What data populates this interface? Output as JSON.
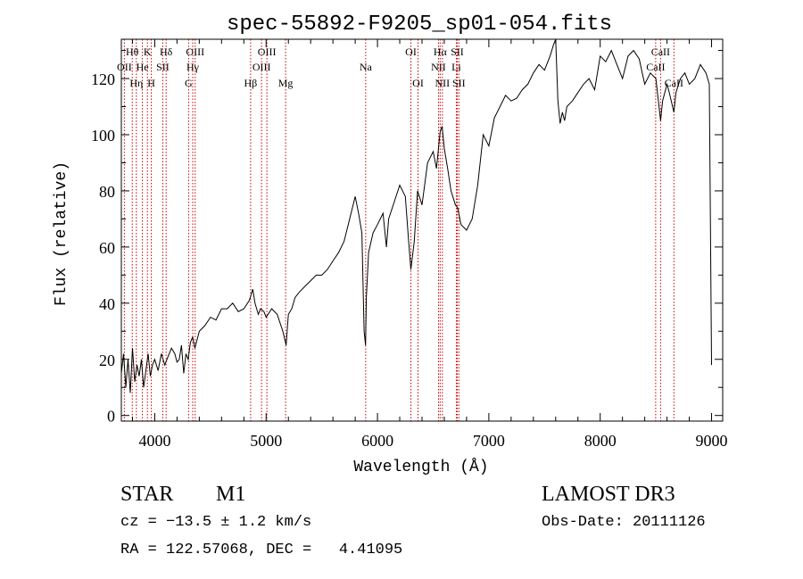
{
  "chart_data": {
    "type": "line",
    "title": "spec-55892-F9205_sp01-054.fits",
    "xlabel": "Wavelength (Å)",
    "ylabel": "Flux (relative)",
    "xlim": [
      3700,
      9100
    ],
    "ylim": [
      -2,
      134
    ],
    "xticks": [
      4000,
      5000,
      6000,
      7000,
      8000,
      9000
    ],
    "yticks": [
      0,
      20,
      40,
      60,
      80,
      100,
      120
    ],
    "series": [
      {
        "name": "flux",
        "x": [
          3700,
          3720,
          3740,
          3760,
          3780,
          3800,
          3820,
          3840,
          3860,
          3880,
          3900,
          3920,
          3940,
          3960,
          3980,
          4000,
          4030,
          4060,
          4090,
          4120,
          4150,
          4180,
          4200,
          4220,
          4240,
          4260,
          4280,
          4300,
          4320,
          4340,
          4360,
          4400,
          4450,
          4500,
          4550,
          4600,
          4650,
          4700,
          4750,
          4800,
          4850,
          4880,
          4900,
          4930,
          4950,
          4980,
          5000,
          5050,
          5100,
          5150,
          5180,
          5200,
          5230,
          5260,
          5300,
          5350,
          5400,
          5450,
          5500,
          5550,
          5600,
          5650,
          5700,
          5750,
          5800,
          5830,
          5860,
          5880,
          5893,
          5900,
          5920,
          5960,
          6000,
          6050,
          6080,
          6100,
          6150,
          6200,
          6250,
          6280,
          6300,
          6330,
          6360,
          6400,
          6450,
          6500,
          6530,
          6563,
          6580,
          6600,
          6630,
          6660,
          6700,
          6720,
          6750,
          6800,
          6850,
          6900,
          6950,
          7000,
          7050,
          7100,
          7150,
          7200,
          7250,
          7300,
          7350,
          7400,
          7450,
          7500,
          7550,
          7580,
          7600,
          7620,
          7640,
          7660,
          7680,
          7700,
          7750,
          7800,
          7850,
          7900,
          7950,
          8000,
          8050,
          8100,
          8150,
          8200,
          8250,
          8300,
          8350,
          8400,
          8450,
          8500,
          8542,
          8560,
          8600,
          8620,
          8662,
          8680,
          8720,
          8760,
          8800,
          8850,
          8900,
          8950,
          8980,
          9000
        ],
        "y": [
          15,
          22,
          10,
          20,
          8,
          24,
          12,
          18,
          14,
          20,
          10,
          16,
          22,
          14,
          18,
          20,
          16,
          22,
          18,
          21,
          24,
          22,
          19,
          20,
          25,
          15,
          22,
          20,
          26,
          28,
          24,
          30,
          32,
          35,
          34,
          38,
          38,
          40,
          37,
          38,
          41,
          45,
          40,
          36,
          38,
          37,
          35,
          38,
          36,
          30,
          25,
          36,
          38,
          42,
          44,
          46,
          48,
          50,
          50,
          52,
          55,
          58,
          62,
          70,
          78,
          72,
          65,
          30,
          25,
          42,
          58,
          65,
          68,
          72,
          60,
          70,
          76,
          82,
          78,
          62,
          52,
          62,
          80,
          75,
          90,
          94,
          88,
          101,
          103,
          95,
          88,
          80,
          75,
          74,
          68,
          66,
          70,
          82,
          100,
          96,
          106,
          110,
          114,
          112,
          113,
          116,
          118,
          122,
          125,
          123,
          128,
          132,
          134,
          112,
          104,
          108,
          105,
          110,
          112,
          115,
          118,
          120,
          116,
          128,
          126,
          130,
          125,
          120,
          128,
          130,
          127,
          118,
          122,
          120,
          105,
          112,
          118,
          115,
          108,
          115,
          120,
          122,
          118,
          120,
          125,
          122,
          118,
          18
        ]
      }
    ],
    "line_markers": [
      {
        "label": "Hθ",
        "wl": 3798,
        "row": 1
      },
      {
        "label": "OII",
        "wl": 3727,
        "row": 2
      },
      {
        "label": "Hη",
        "wl": 3835,
        "row": 3
      },
      {
        "label": "He",
        "wl": 3889,
        "row": 2
      },
      {
        "label": "K",
        "wl": 3934,
        "row": 1
      },
      {
        "label": "H",
        "wl": 3969,
        "row": 3
      },
      {
        "label": "SII",
        "wl": 4072,
        "row": 2
      },
      {
        "label": "Hδ",
        "wl": 4102,
        "row": 1
      },
      {
        "label": "G",
        "wl": 4304,
        "row": 3
      },
      {
        "label": "Hγ",
        "wl": 4341,
        "row": 2
      },
      {
        "label": "OIII",
        "wl": 4363,
        "row": 1
      },
      {
        "label": "Hβ",
        "wl": 4861,
        "row": 3
      },
      {
        "label": "OIII",
        "wl": 4959,
        "row": 2
      },
      {
        "label": "OIII",
        "wl": 5007,
        "row": 1
      },
      {
        "label": "Mg",
        "wl": 5175,
        "row": 3
      },
      {
        "label": "Na",
        "wl": 5894,
        "row": 2
      },
      {
        "label": "OI",
        "wl": 6300,
        "row": 1
      },
      {
        "label": "OI",
        "wl": 6364,
        "row": 3
      },
      {
        "label": "NII",
        "wl": 6548,
        "row": 2
      },
      {
        "label": "Hα",
        "wl": 6563,
        "row": 1
      },
      {
        "label": "NII",
        "wl": 6583,
        "row": 3
      },
      {
        "label": "Li",
        "wl": 6708,
        "row": 2
      },
      {
        "label": "SII",
        "wl": 6716,
        "row": 1
      },
      {
        "label": "SII",
        "wl": 6731,
        "row": 3
      },
      {
        "label": "CaII",
        "wl": 8498,
        "row": 2
      },
      {
        "label": "CaII",
        "wl": 8542,
        "row": 1
      },
      {
        "label": "CaII",
        "wl": 8662,
        "row": 3
      }
    ]
  },
  "footer": {
    "object_class": "STAR",
    "subclass": "M1",
    "survey": "LAMOST DR3",
    "redshift": "cz = −13.5 ± 1.2 km/s",
    "obs_date": "Obs-Date: 20111126",
    "coords": "RA = 122.57068, DEC =   4.41095"
  },
  "colors": {
    "axis": "#000000",
    "spectrum": "#000000",
    "marker_line": "#cc0000"
  }
}
